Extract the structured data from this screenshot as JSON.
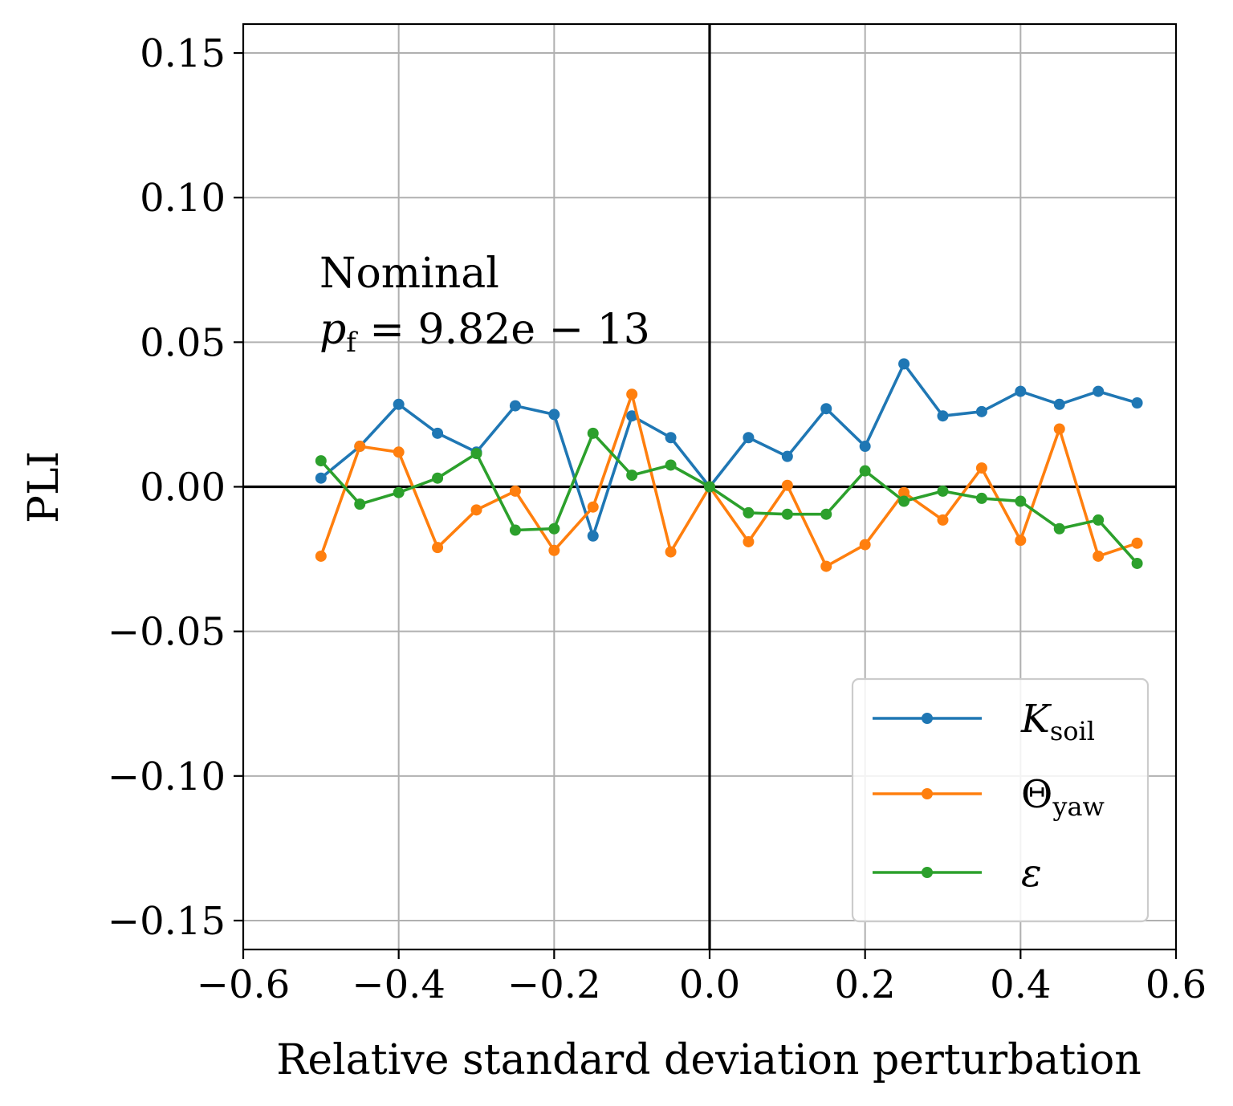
{
  "chart_data": {
    "type": "line",
    "xlabel": "Relative standard deviation perturbation",
    "ylabel": "PLI",
    "xlim": [
      -0.6,
      0.6
    ],
    "ylim": [
      -0.16,
      0.16
    ],
    "xticks": [
      -0.6,
      -0.4,
      -0.2,
      0.0,
      0.2,
      0.4,
      0.6
    ],
    "xtick_labels": [
      "−0.6",
      "−0.4",
      "−0.2",
      "0.0",
      "0.2",
      "0.4",
      "0.6"
    ],
    "yticks": [
      0.15,
      0.1,
      0.05,
      0.0,
      -0.05,
      -0.1,
      -0.15
    ],
    "ytick_labels": [
      "0.15",
      "0.10",
      "0.05",
      "0.00",
      "−0.05",
      "−0.10",
      "−0.15"
    ],
    "grid": true,
    "legend_position": "bottom-right",
    "annotation": {
      "line1": "Nominal",
      "line2_prefix": "p",
      "line2_sub": "f",
      "line2_rest": " = 9.82e − 13"
    },
    "x": [
      -0.5,
      -0.45,
      -0.4,
      -0.35,
      -0.3,
      -0.25,
      -0.2,
      -0.15,
      -0.1,
      -0.05,
      0.0,
      0.05,
      0.1,
      0.15,
      0.2,
      0.25,
      0.3,
      0.35,
      0.4,
      0.45,
      0.5,
      0.55
    ],
    "series": [
      {
        "name": "K",
        "name_sub": "soil",
        "color": "#1f77b4",
        "values": [
          0.003,
          0.014,
          0.0285,
          0.0185,
          0.012,
          0.028,
          0.025,
          -0.017,
          0.0245,
          0.017,
          0.0,
          0.017,
          0.0105,
          0.027,
          0.014,
          0.0425,
          0.0245,
          0.026,
          0.033,
          0.0285,
          0.033,
          0.029
        ]
      },
      {
        "name": "Θ",
        "name_sub": "yaw",
        "color": "#ff7f0e",
        "values": [
          -0.024,
          0.014,
          0.012,
          -0.021,
          -0.008,
          -0.0015,
          -0.022,
          -0.007,
          0.032,
          -0.0225,
          0.0,
          -0.019,
          0.0005,
          -0.0275,
          -0.02,
          -0.002,
          -0.0115,
          0.0065,
          -0.0185,
          0.02,
          -0.024,
          -0.0195
        ]
      },
      {
        "name": "ε",
        "name_sub": "",
        "color": "#2ca02c",
        "values": [
          0.009,
          -0.006,
          -0.002,
          0.003,
          0.0115,
          -0.015,
          -0.0145,
          0.0185,
          0.004,
          0.0075,
          0.0,
          -0.009,
          -0.0095,
          -0.0095,
          0.0055,
          -0.005,
          -0.0015,
          -0.004,
          -0.005,
          -0.0145,
          -0.0115,
          -0.0265
        ]
      }
    ]
  }
}
